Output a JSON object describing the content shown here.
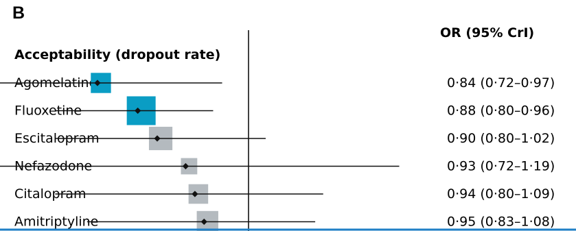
{
  "panel_label": "B",
  "colors": {
    "primary": "#0a9dc4",
    "muted": "#b4babf",
    "line": "#111111",
    "bottom_rule": "#1f7fc6"
  },
  "chart_data": {
    "type": "forest",
    "title": "",
    "column_header": "OR (95% CrI)",
    "section_title": "Acceptability (dropout rate)",
    "reference_value": 1.0,
    "scale": "log",
    "rows": [
      {
        "label": "Agomelatine",
        "or": 0.84,
        "lo": 0.72,
        "hi": 0.97,
        "text": "0·84 (0·72–0·97)",
        "weight": 0.55,
        "highlight": true
      },
      {
        "label": "Fluoxetine",
        "or": 0.88,
        "lo": 0.8,
        "hi": 0.96,
        "text": "0·88 (0·80–0·96)",
        "weight": 1.0,
        "highlight": true
      },
      {
        "label": "Escitalopram",
        "or": 0.9,
        "lo": 0.8,
        "hi": 1.02,
        "text": "0·90 (0·80–1·02)",
        "weight": 0.72,
        "highlight": false
      },
      {
        "label": "Nefazodone",
        "or": 0.93,
        "lo": 0.72,
        "hi": 1.19,
        "text": "0·93 (0·72–1·19)",
        "weight": 0.35,
        "highlight": false
      },
      {
        "label": "Citalopram",
        "or": 0.94,
        "lo": 0.8,
        "hi": 1.09,
        "text": "0·94 (0·80–1·09)",
        "weight": 0.52,
        "highlight": false
      },
      {
        "label": "Amitriptyline",
        "or": 0.95,
        "lo": 0.83,
        "hi": 1.08,
        "text": "0·95 (0·83–1·08)",
        "weight": 0.62,
        "highlight": false
      }
    ]
  }
}
